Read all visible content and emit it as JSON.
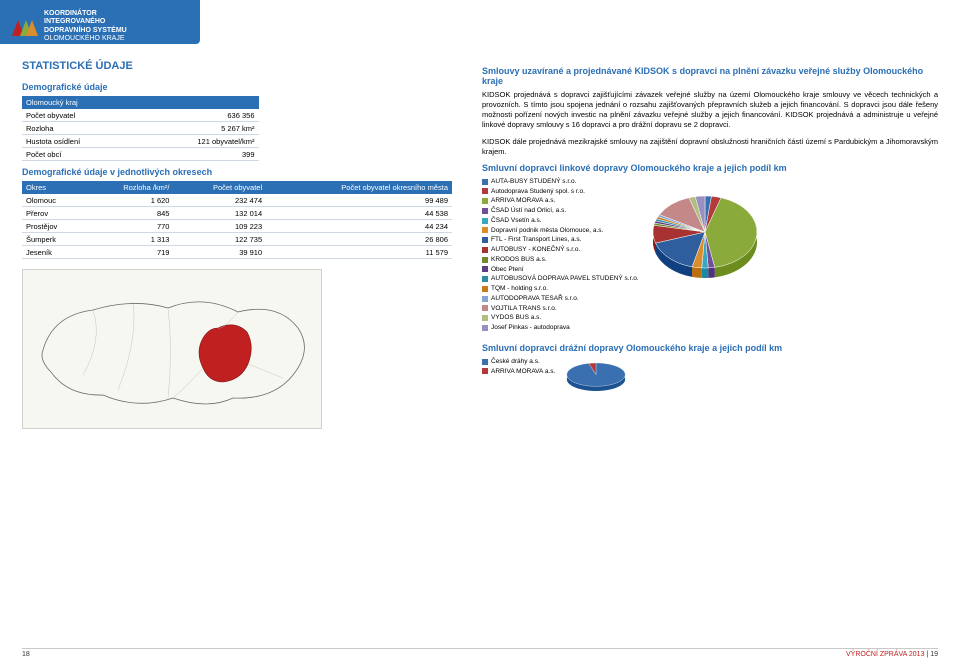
{
  "header": {
    "logo_lines": [
      "KOORDINÁTOR",
      "INTEGROVANÉHO",
      "DOPRAVNÍHO SYSTÉMU",
      "OLOMOUCKÉHO KRAJE"
    ],
    "bg_color": "#2b6fb5"
  },
  "left": {
    "title": "STATISTICKÉ ÚDAJE",
    "section1_title": "Demografické údaje",
    "table1": {
      "header": "Olomoucký kraj",
      "rows": [
        [
          "Počet obyvatel",
          "636 356"
        ],
        [
          "Rozloha",
          "5 267 km²"
        ],
        [
          "Hustota osídlení",
          "121 obyvatel/km²"
        ],
        [
          "Počet obcí",
          "399"
        ]
      ]
    },
    "section2_title": "Demografické údaje v jednotlivých okresech",
    "table2": {
      "columns": [
        "Okres",
        "Rozloha /km²/",
        "Počet obyvatel",
        "Počet obyvatel okresního města"
      ],
      "rows": [
        [
          "Olomouc",
          "1 620",
          "232 474",
          "99 489"
        ],
        [
          "Přerov",
          "845",
          "132 014",
          "44 538"
        ],
        [
          "Prostějov",
          "770",
          "109 223",
          "44 234"
        ],
        [
          "Šumperk",
          "1 313",
          "122 735",
          "26 806"
        ],
        [
          "Jeseník",
          "719",
          "39 910",
          "11 579"
        ]
      ]
    },
    "map": {
      "outline_color": "#6a6a6a",
      "fill_color": "#f7f7f2",
      "highlight_color": "#c02020"
    }
  },
  "right": {
    "heading1": "Smlouvy uzavírané a projednávané KIDSOK s dopravci na plnění závazku veřejné služby Olomouckého kraje",
    "para1": "KIDSOK projednává s dopravci zajišťujícími závazek veřejné služby na území Olomouckého kraje smlouvy ve věcech technických a provozních. S tímto jsou spojena jednání o rozsahu zajišťovaných přepravních služeb a jejich financování. S dopravci jsou dále řešeny možnosti pořízení nových investic na plnění závazku veřejné služby a jejich financování. KIDSOK projednává a administruje u veřejné linkové dopravy smlouvy s 16 dopravci a pro drážní dopravu se 2 dopravci.",
    "para2": "KIDSOK dále projednává mezikrajské smlouvy na zajištění dopravní obslužnosti hraničních částí území s Pardubickým a Jihomoravským krajem.",
    "chart1_title": "Smluvní dopravci linkové dopravy Olomouckého kraje a jejich podíl km",
    "chart1": {
      "type": "pie-3d",
      "items": [
        {
          "label": "AUTA-BUSY STUDENÝ s.r.o.",
          "color": "#3a6fb0",
          "value": 2
        },
        {
          "label": "Autodoprava Studený spol. s r.o.",
          "color": "#b23a3a",
          "value": 3
        },
        {
          "label": "ARRIVA MORAVA a.s.",
          "color": "#8aaa3c",
          "value": 42
        },
        {
          "label": "ČSAD Ústí nad Orlicí, a.s.",
          "color": "#6e4f99",
          "value": 2
        },
        {
          "label": "ČSAD Vsetín a.s.",
          "color": "#3aa7c1",
          "value": 2
        },
        {
          "label": "Dopravní podnik města Olomouce, a.s.",
          "color": "#d98d2b",
          "value": 3
        },
        {
          "label": "FTL - First Transport Lines, a.s.",
          "color": "#2f5e9e",
          "value": 16
        },
        {
          "label": "AUTOBUSY - KONEČNÝ s.r.o.",
          "color": "#a83232",
          "value": 8
        },
        {
          "label": "KRODOS BUS a.s.",
          "color": "#6f8a2e",
          "value": 1
        },
        {
          "label": "Obec Ptení",
          "color": "#5a3f82",
          "value": 1
        },
        {
          "label": "AUTOBUSOVÁ DOPRAVA PAVEL STUDENÝ s.r.o.",
          "color": "#2d8da4",
          "value": 1
        },
        {
          "label": "TQM - holding s.r.o.",
          "color": "#c77a1e",
          "value": 1
        },
        {
          "label": "AUTODOPRAVA TESAŘ s.r.o.",
          "color": "#86a7d4",
          "value": 1
        },
        {
          "label": "VOJTILA TRANS s.r.o.",
          "color": "#c48888",
          "value": 12
        },
        {
          "label": "VYDOS BUS a.s.",
          "color": "#aebf80",
          "value": 2
        },
        {
          "label": "Josef Pinkas - autodoprava",
          "color": "#998fc1",
          "value": 3
        }
      ]
    },
    "chart2_title": "Smluvní dopravci drážní dopravy Olomouckého kraje a jejich podíl km",
    "chart2": {
      "type": "pie-3d",
      "items": [
        {
          "label": "České dráhy a.s.",
          "color": "#3a6fb0",
          "value": 96
        },
        {
          "label": "ARRIVA MORAVA a.s.",
          "color": "#b23a3a",
          "value": 4
        }
      ]
    }
  },
  "footer": {
    "page_left": "18",
    "report_text": "VÝROČNÍ ZPRÁVA 2013",
    "page_right": "19"
  }
}
